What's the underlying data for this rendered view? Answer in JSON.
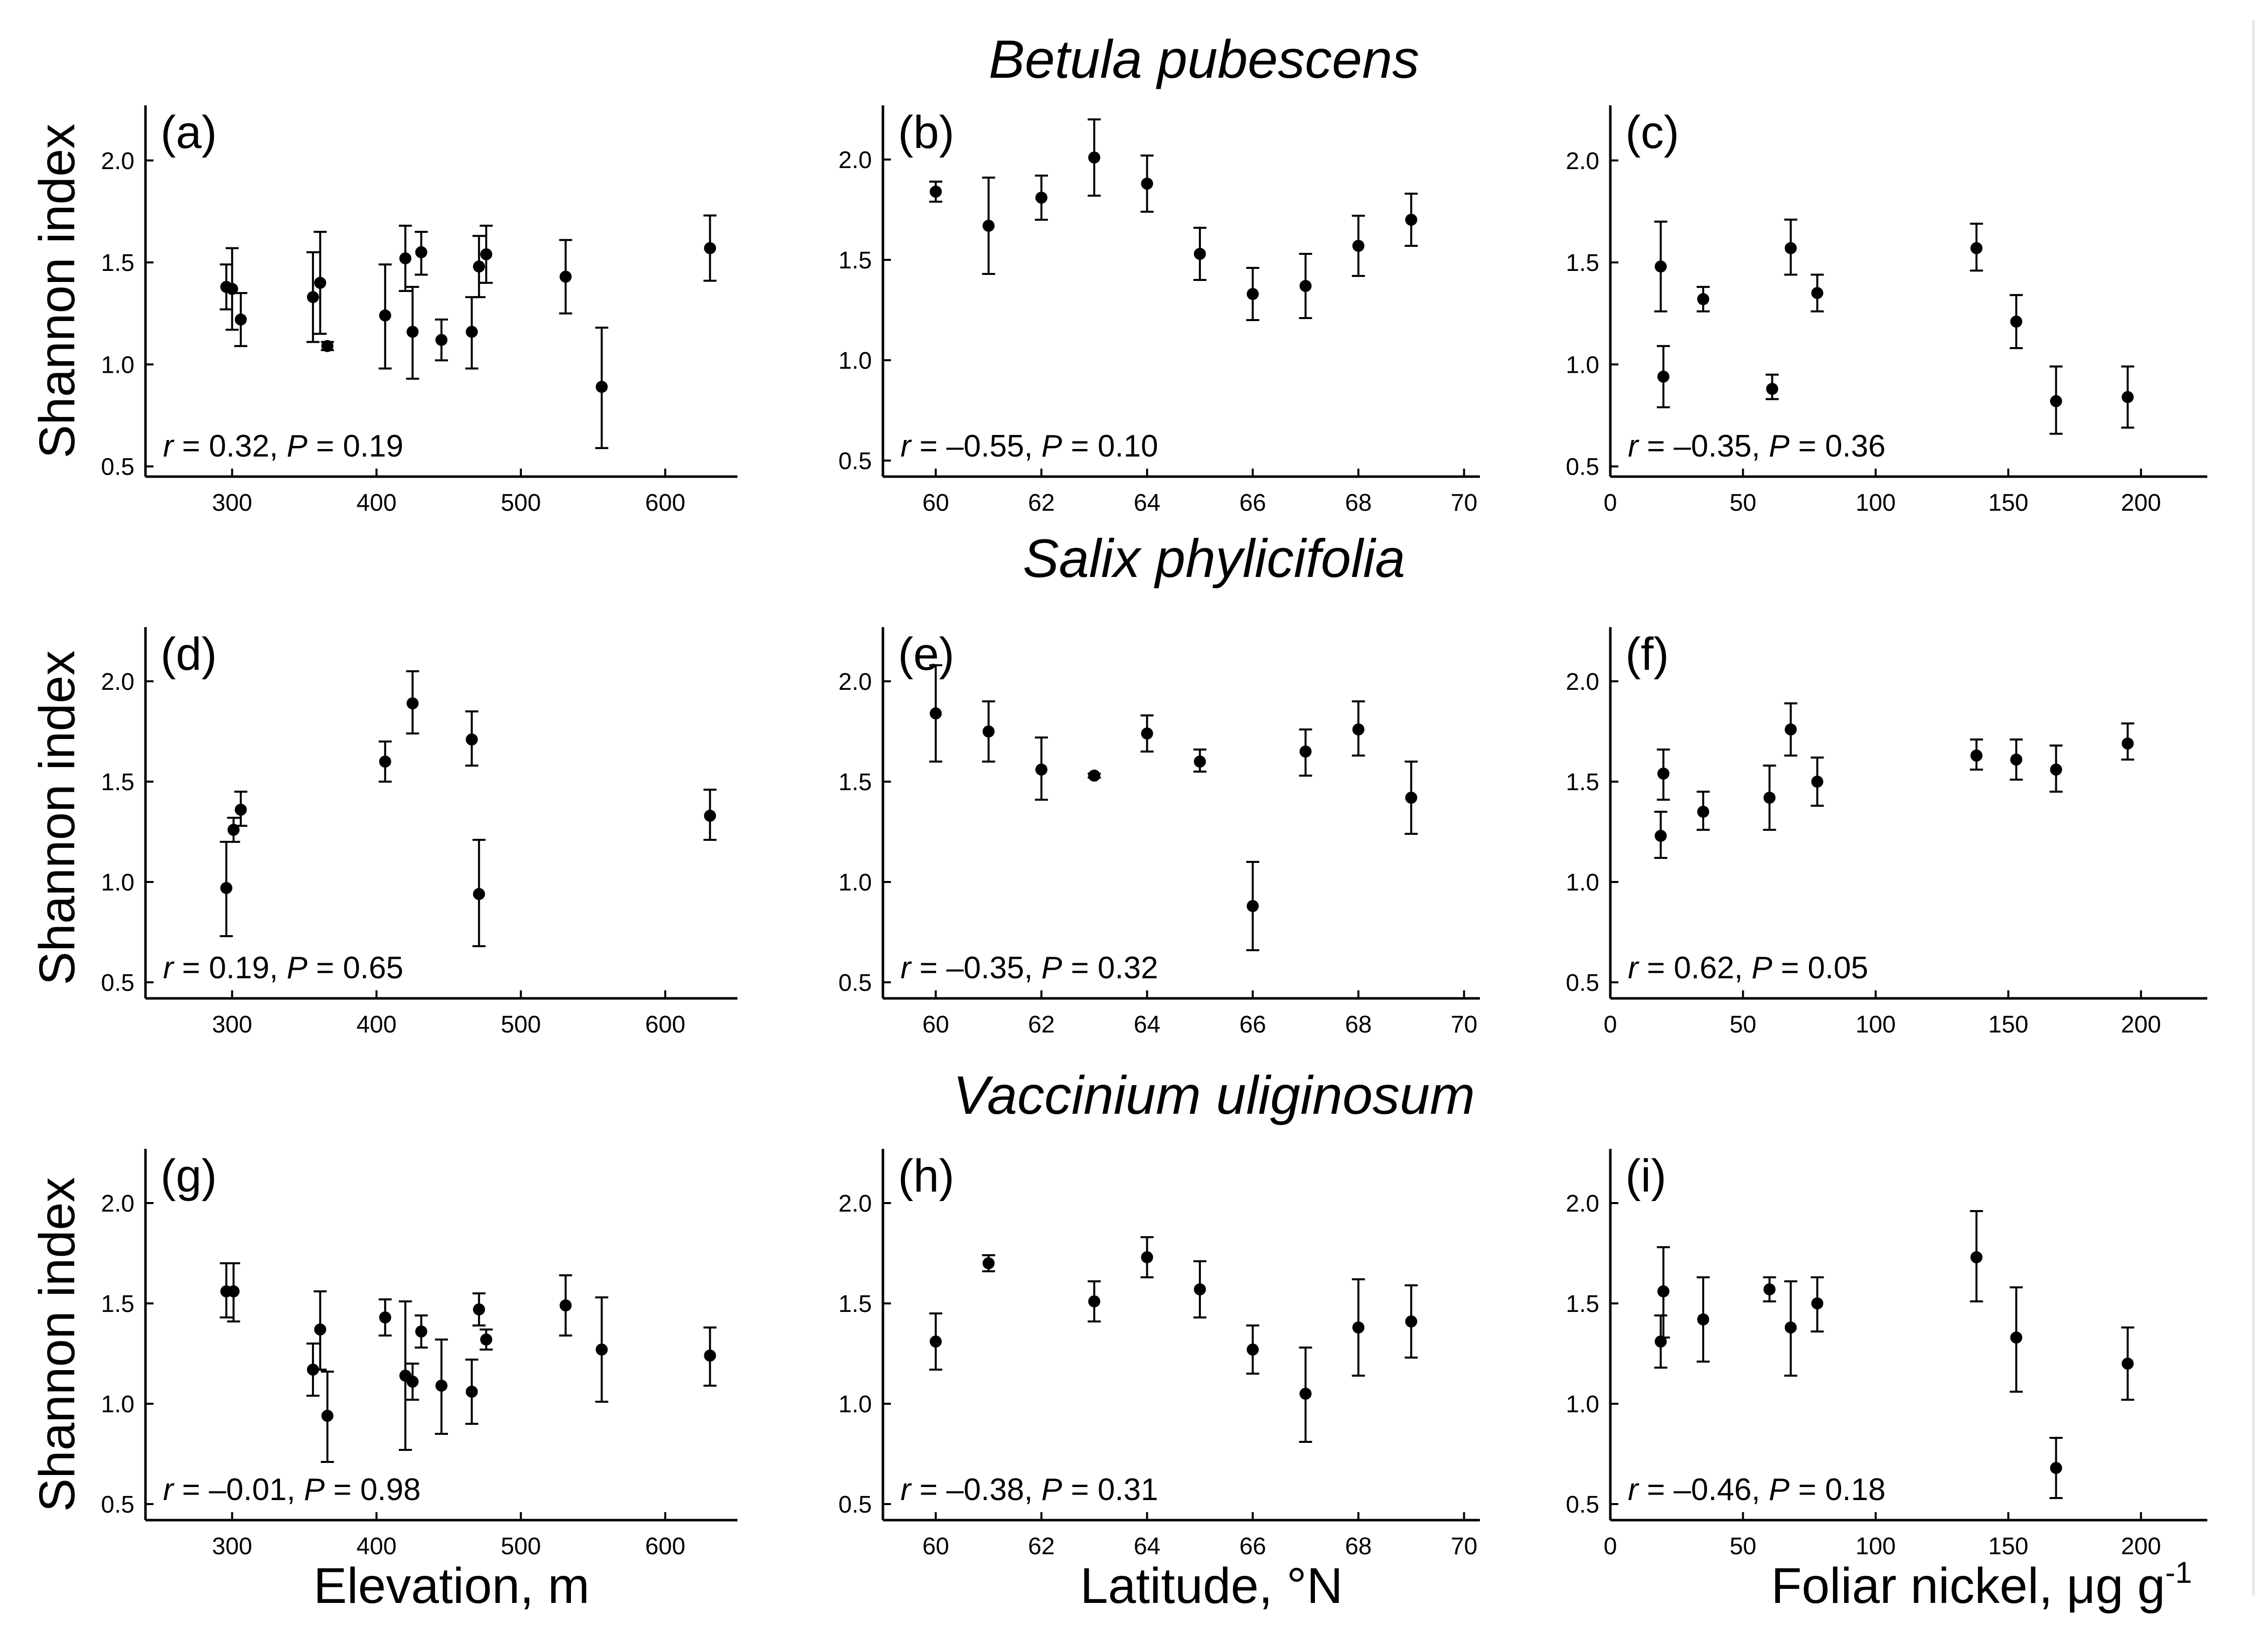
{
  "figure": {
    "row_titles": [
      "Betula pubescens",
      "Salix phylicifolia",
      "Vaccinium uliginosum"
    ],
    "y_axis_title": "Shannon index",
    "x_axis_titles": {
      "elevation": "Elevation, m",
      "latitude": "Latitude, °N",
      "nickel_main": "Foliar nickel, ",
      "nickel_unit": "μg g",
      "nickel_exp": "-1"
    },
    "r_symbol": "r",
    "p_symbol": "P"
  },
  "chart_data": [
    {
      "panel": "(a)",
      "type": "scatter",
      "species": "Betula pubescens",
      "xlabel": "Elevation, m",
      "ylabel": "Shannon index",
      "xlim": [
        240,
        650
      ],
      "ylim": [
        0.45,
        2.27
      ],
      "xticks": [
        300,
        400,
        500,
        600
      ],
      "yticks": [
        0.5,
        1.0,
        1.5,
        2.0
      ],
      "r": "0.32",
      "p": "0.19",
      "points": [
        {
          "x": 296,
          "y": 1.38,
          "lo": 1.27,
          "hi": 1.49
        },
        {
          "x": 300,
          "y": 1.37,
          "lo": 1.17,
          "hi": 1.57
        },
        {
          "x": 306,
          "y": 1.22,
          "lo": 1.09,
          "hi": 1.35
        },
        {
          "x": 356,
          "y": 1.33,
          "lo": 1.11,
          "hi": 1.55
        },
        {
          "x": 361,
          "y": 1.4,
          "lo": 1.15,
          "hi": 1.65
        },
        {
          "x": 366,
          "y": 1.09,
          "lo": 1.07,
          "hi": 1.11
        },
        {
          "x": 406,
          "y": 1.24,
          "lo": 0.98,
          "hi": 1.49
        },
        {
          "x": 420,
          "y": 1.52,
          "lo": 1.36,
          "hi": 1.68
        },
        {
          "x": 425,
          "y": 1.16,
          "lo": 0.93,
          "hi": 1.38
        },
        {
          "x": 431,
          "y": 1.55,
          "lo": 1.44,
          "hi": 1.65
        },
        {
          "x": 445,
          "y": 1.12,
          "lo": 1.02,
          "hi": 1.22
        },
        {
          "x": 466,
          "y": 1.16,
          "lo": 0.98,
          "hi": 1.33
        },
        {
          "x": 471,
          "y": 1.48,
          "lo": 1.33,
          "hi": 1.63
        },
        {
          "x": 476,
          "y": 1.54,
          "lo": 1.4,
          "hi": 1.68
        },
        {
          "x": 531,
          "y": 1.43,
          "lo": 1.25,
          "hi": 1.61
        },
        {
          "x": 556,
          "y": 0.89,
          "lo": 0.59,
          "hi": 1.18
        },
        {
          "x": 631,
          "y": 1.57,
          "lo": 1.41,
          "hi": 1.73
        }
      ]
    },
    {
      "panel": "(b)",
      "type": "scatter",
      "species": "Betula pubescens",
      "xlabel": "Latitude, °N",
      "ylabel": "Shannon index",
      "xlim": [
        59,
        70.3
      ],
      "ylim": [
        0.42,
        2.27
      ],
      "xticks": [
        60,
        62,
        64,
        66,
        68,
        70
      ],
      "yticks": [
        0.5,
        1.0,
        1.5,
        2.0
      ],
      "r": "–0.55",
      "p": "0.10",
      "points": [
        {
          "x": 60,
          "y": 1.84,
          "lo": 1.79,
          "hi": 1.89
        },
        {
          "x": 61,
          "y": 1.67,
          "lo": 1.43,
          "hi": 1.91
        },
        {
          "x": 62,
          "y": 1.81,
          "lo": 1.7,
          "hi": 1.92
        },
        {
          "x": 63,
          "y": 2.01,
          "lo": 1.82,
          "hi": 2.2
        },
        {
          "x": 64,
          "y": 1.88,
          "lo": 1.74,
          "hi": 2.02
        },
        {
          "x": 65,
          "y": 1.53,
          "lo": 1.4,
          "hi": 1.66
        },
        {
          "x": 66,
          "y": 1.33,
          "lo": 1.2,
          "hi": 1.46
        },
        {
          "x": 67,
          "y": 1.37,
          "lo": 1.21,
          "hi": 1.53
        },
        {
          "x": 68,
          "y": 1.57,
          "lo": 1.42,
          "hi": 1.72
        },
        {
          "x": 69,
          "y": 1.7,
          "lo": 1.57,
          "hi": 1.83
        }
      ]
    },
    {
      "panel": "(c)",
      "type": "scatter",
      "species": "Betula pubescens",
      "xlabel": "Foliar nickel, μg g-1",
      "ylabel": "Shannon index",
      "xlim": [
        0,
        225
      ],
      "ylim": [
        0.45,
        2.27
      ],
      "xticks": [
        0,
        50,
        100,
        150,
        200
      ],
      "yticks": [
        0.5,
        1.0,
        1.5,
        2.0
      ],
      "r": "–0.35",
      "p": "0.36",
      "points": [
        {
          "x": 19,
          "y": 1.48,
          "lo": 1.26,
          "hi": 1.7
        },
        {
          "x": 20,
          "y": 0.94,
          "lo": 0.79,
          "hi": 1.09
        },
        {
          "x": 35,
          "y": 1.32,
          "lo": 1.26,
          "hi": 1.38
        },
        {
          "x": 61,
          "y": 0.88,
          "lo": 0.83,
          "hi": 0.95
        },
        {
          "x": 68,
          "y": 1.57,
          "lo": 1.44,
          "hi": 1.71
        },
        {
          "x": 78,
          "y": 1.35,
          "lo": 1.26,
          "hi": 1.44
        },
        {
          "x": 138,
          "y": 1.57,
          "lo": 1.46,
          "hi": 1.69
        },
        {
          "x": 153,
          "y": 1.21,
          "lo": 1.08,
          "hi": 1.34
        },
        {
          "x": 168,
          "y": 0.82,
          "lo": 0.66,
          "hi": 0.99
        },
        {
          "x": 195,
          "y": 0.84,
          "lo": 0.69,
          "hi": 0.99
        }
      ]
    },
    {
      "panel": "(d)",
      "type": "scatter",
      "species": "Salix phylicifolia",
      "xlabel": "Elevation, m",
      "ylabel": "Shannon index",
      "xlim": [
        240,
        650
      ],
      "ylim": [
        0.42,
        2.27
      ],
      "xticks": [
        300,
        400,
        500,
        600
      ],
      "yticks": [
        0.5,
        1.0,
        1.5,
        2.0
      ],
      "r": "0.19",
      "p": "0.65",
      "points": [
        {
          "x": 296,
          "y": 0.97,
          "lo": 0.73,
          "hi": 1.2
        },
        {
          "x": 301,
          "y": 1.26,
          "lo": 1.2,
          "hi": 1.32
        },
        {
          "x": 306,
          "y": 1.36,
          "lo": 1.28,
          "hi": 1.45
        },
        {
          "x": 406,
          "y": 1.6,
          "lo": 1.5,
          "hi": 1.7
        },
        {
          "x": 425,
          "y": 1.89,
          "lo": 1.74,
          "hi": 2.05
        },
        {
          "x": 466,
          "y": 1.71,
          "lo": 1.58,
          "hi": 1.85
        },
        {
          "x": 471,
          "y": 0.94,
          "lo": 0.68,
          "hi": 1.21
        },
        {
          "x": 631,
          "y": 1.33,
          "lo": 1.21,
          "hi": 1.46
        }
      ]
    },
    {
      "panel": "(e)",
      "type": "scatter",
      "species": "Salix phylicifolia",
      "xlabel": "Latitude, °N",
      "ylabel": "Shannon index",
      "xlim": [
        59,
        70.3
      ],
      "ylim": [
        0.42,
        2.27
      ],
      "xticks": [
        60,
        62,
        64,
        66,
        68,
        70
      ],
      "yticks": [
        0.5,
        1.0,
        1.5,
        2.0
      ],
      "r": "–0.35",
      "p": "0.32",
      "points": [
        {
          "x": 60,
          "y": 1.84,
          "lo": 1.6,
          "hi": 2.08
        },
        {
          "x": 61,
          "y": 1.75,
          "lo": 1.6,
          "hi": 1.9
        },
        {
          "x": 62,
          "y": 1.56,
          "lo": 1.41,
          "hi": 1.72
        },
        {
          "x": 63,
          "y": 1.53,
          "lo": 1.52,
          "hi": 1.54
        },
        {
          "x": 64,
          "y": 1.74,
          "lo": 1.65,
          "hi": 1.83
        },
        {
          "x": 65,
          "y": 1.6,
          "lo": 1.55,
          "hi": 1.66
        },
        {
          "x": 66,
          "y": 0.88,
          "lo": 0.66,
          "hi": 1.1
        },
        {
          "x": 67,
          "y": 1.65,
          "lo": 1.53,
          "hi": 1.76
        },
        {
          "x": 68,
          "y": 1.76,
          "lo": 1.63,
          "hi": 1.9
        },
        {
          "x": 69,
          "y": 1.42,
          "lo": 1.24,
          "hi": 1.6
        }
      ]
    },
    {
      "panel": "(f)",
      "type": "scatter",
      "species": "Salix phylicifolia",
      "xlabel": "Foliar nickel, μg g-1",
      "ylabel": "Shannon index",
      "xlim": [
        0,
        225
      ],
      "ylim": [
        0.42,
        2.27
      ],
      "xticks": [
        0,
        50,
        100,
        150,
        200
      ],
      "yticks": [
        0.5,
        1.0,
        1.5,
        2.0
      ],
      "r": "0.62",
      "p": "0.05",
      "points": [
        {
          "x": 19,
          "y": 1.23,
          "lo": 1.12,
          "hi": 1.35
        },
        {
          "x": 20,
          "y": 1.54,
          "lo": 1.41,
          "hi": 1.66
        },
        {
          "x": 35,
          "y": 1.35,
          "lo": 1.26,
          "hi": 1.45
        },
        {
          "x": 60,
          "y": 1.42,
          "lo": 1.26,
          "hi": 1.58
        },
        {
          "x": 68,
          "y": 1.76,
          "lo": 1.63,
          "hi": 1.89
        },
        {
          "x": 78,
          "y": 1.5,
          "lo": 1.38,
          "hi": 1.62
        },
        {
          "x": 138,
          "y": 1.63,
          "lo": 1.56,
          "hi": 1.71
        },
        {
          "x": 153,
          "y": 1.61,
          "lo": 1.51,
          "hi": 1.71
        },
        {
          "x": 168,
          "y": 1.56,
          "lo": 1.45,
          "hi": 1.68
        },
        {
          "x": 195,
          "y": 1.69,
          "lo": 1.61,
          "hi": 1.79
        }
      ]
    },
    {
      "panel": "(g)",
      "type": "scatter",
      "species": "Vaccinium uliginosum",
      "xlabel": "Elevation, m",
      "ylabel": "Shannon index",
      "xlim": [
        240,
        650
      ],
      "ylim": [
        0.42,
        2.27
      ],
      "xticks": [
        300,
        400,
        500,
        600
      ],
      "yticks": [
        0.5,
        1.0,
        1.5,
        2.0
      ],
      "r": "–0.01",
      "p": "0.98",
      "points": [
        {
          "x": 296,
          "y": 1.56,
          "lo": 1.43,
          "hi": 1.7
        },
        {
          "x": 301,
          "y": 1.56,
          "lo": 1.41,
          "hi": 1.7
        },
        {
          "x": 356,
          "y": 1.17,
          "lo": 1.04,
          "hi": 1.3
        },
        {
          "x": 361,
          "y": 1.37,
          "lo": 1.17,
          "hi": 1.56
        },
        {
          "x": 366,
          "y": 0.94,
          "lo": 0.71,
          "hi": 1.16
        },
        {
          "x": 406,
          "y": 1.43,
          "lo": 1.34,
          "hi": 1.52
        },
        {
          "x": 420,
          "y": 1.14,
          "lo": 0.77,
          "hi": 1.51
        },
        {
          "x": 425,
          "y": 1.11,
          "lo": 1.02,
          "hi": 1.2
        },
        {
          "x": 431,
          "y": 1.36,
          "lo": 1.28,
          "hi": 1.44
        },
        {
          "x": 445,
          "y": 1.09,
          "lo": 0.85,
          "hi": 1.32
        },
        {
          "x": 466,
          "y": 1.06,
          "lo": 0.9,
          "hi": 1.22
        },
        {
          "x": 471,
          "y": 1.47,
          "lo": 1.39,
          "hi": 1.55
        },
        {
          "x": 476,
          "y": 1.32,
          "lo": 1.27,
          "hi": 1.37
        },
        {
          "x": 531,
          "y": 1.49,
          "lo": 1.34,
          "hi": 1.64
        },
        {
          "x": 556,
          "y": 1.27,
          "lo": 1.01,
          "hi": 1.53
        },
        {
          "x": 631,
          "y": 1.24,
          "lo": 1.09,
          "hi": 1.38
        }
      ]
    },
    {
      "panel": "(h)",
      "type": "scatter",
      "species": "Vaccinium uliginosum",
      "xlabel": "Latitude, °N",
      "ylabel": "Shannon index",
      "xlim": [
        59,
        70.3
      ],
      "ylim": [
        0.42,
        2.27
      ],
      "xticks": [
        60,
        62,
        64,
        66,
        68,
        70
      ],
      "yticks": [
        0.5,
        1.0,
        1.5,
        2.0
      ],
      "r": "–0.38",
      "p": "0.31",
      "points": [
        {
          "x": 60,
          "y": 1.31,
          "lo": 1.17,
          "hi": 1.45
        },
        {
          "x": 61,
          "y": 1.7,
          "lo": 1.66,
          "hi": 1.74
        },
        {
          "x": 63,
          "y": 1.51,
          "lo": 1.41,
          "hi": 1.61
        },
        {
          "x": 64,
          "y": 1.73,
          "lo": 1.63,
          "hi": 1.83
        },
        {
          "x": 65,
          "y": 1.57,
          "lo": 1.43,
          "hi": 1.71
        },
        {
          "x": 66,
          "y": 1.27,
          "lo": 1.15,
          "hi": 1.39
        },
        {
          "x": 67,
          "y": 1.05,
          "lo": 0.81,
          "hi": 1.28
        },
        {
          "x": 68,
          "y": 1.38,
          "lo": 1.14,
          "hi": 1.62
        },
        {
          "x": 69,
          "y": 1.41,
          "lo": 1.23,
          "hi": 1.59
        }
      ]
    },
    {
      "panel": "(i)",
      "type": "scatter",
      "species": "Vaccinium uliginosum",
      "xlabel": "Foliar nickel, μg g-1",
      "ylabel": "Shannon index",
      "xlim": [
        0,
        225
      ],
      "ylim": [
        0.42,
        2.27
      ],
      "xticks": [
        0,
        50,
        100,
        150,
        200
      ],
      "yticks": [
        0.5,
        1.0,
        1.5,
        2.0
      ],
      "r": "–0.46",
      "p": "0.18",
      "points": [
        {
          "x": 19,
          "y": 1.31,
          "lo": 1.18,
          "hi": 1.44
        },
        {
          "x": 20,
          "y": 1.56,
          "lo": 1.33,
          "hi": 1.78
        },
        {
          "x": 35,
          "y": 1.42,
          "lo": 1.21,
          "hi": 1.63
        },
        {
          "x": 60,
          "y": 1.57,
          "lo": 1.51,
          "hi": 1.63
        },
        {
          "x": 68,
          "y": 1.38,
          "lo": 1.14,
          "hi": 1.61
        },
        {
          "x": 78,
          "y": 1.5,
          "lo": 1.36,
          "hi": 1.63
        },
        {
          "x": 138,
          "y": 1.73,
          "lo": 1.51,
          "hi": 1.96
        },
        {
          "x": 153,
          "y": 1.33,
          "lo": 1.06,
          "hi": 1.58
        },
        {
          "x": 168,
          "y": 0.68,
          "lo": 0.53,
          "hi": 0.83
        },
        {
          "x": 195,
          "y": 1.2,
          "lo": 1.02,
          "hi": 1.38
        }
      ]
    }
  ]
}
